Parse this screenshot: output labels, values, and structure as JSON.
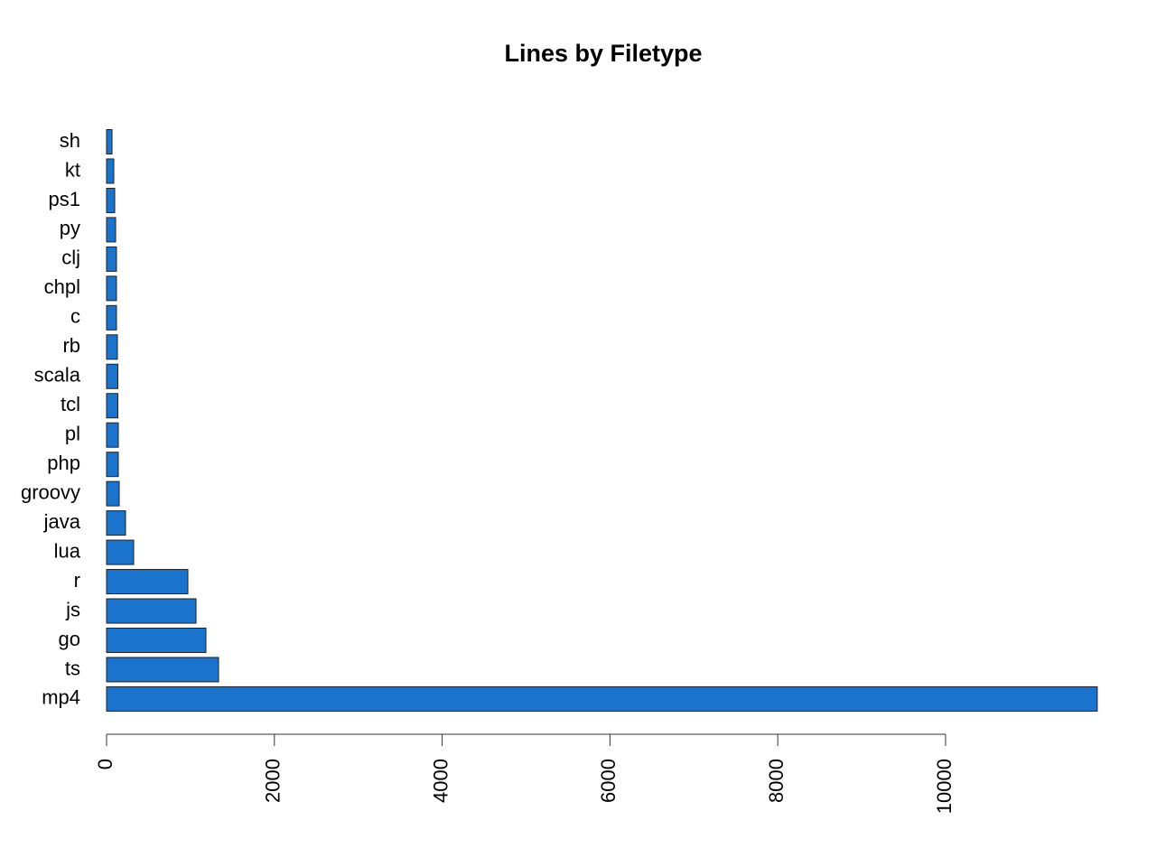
{
  "chart_data": {
    "type": "bar",
    "orientation": "horizontal",
    "title": "Lines by Filetype",
    "categories": [
      "sh",
      "kt",
      "ps1",
      "py",
      "clj",
      "chpl",
      "c",
      "rb",
      "scala",
      "tcl",
      "pl",
      "php",
      "groovy",
      "java",
      "lua",
      "r",
      "js",
      "go",
      "ts",
      "mp4"
    ],
    "values": [
      65,
      86,
      97,
      108,
      118,
      118,
      118,
      129,
      135,
      135,
      140,
      140,
      151,
      226,
      323,
      969,
      1066,
      1184,
      1335,
      11808
    ],
    "color": "#1a73cd",
    "xlim": [
      0,
      12000
    ],
    "xticks": [
      0,
      2000,
      4000,
      6000,
      8000,
      10000
    ],
    "grid": false
  }
}
